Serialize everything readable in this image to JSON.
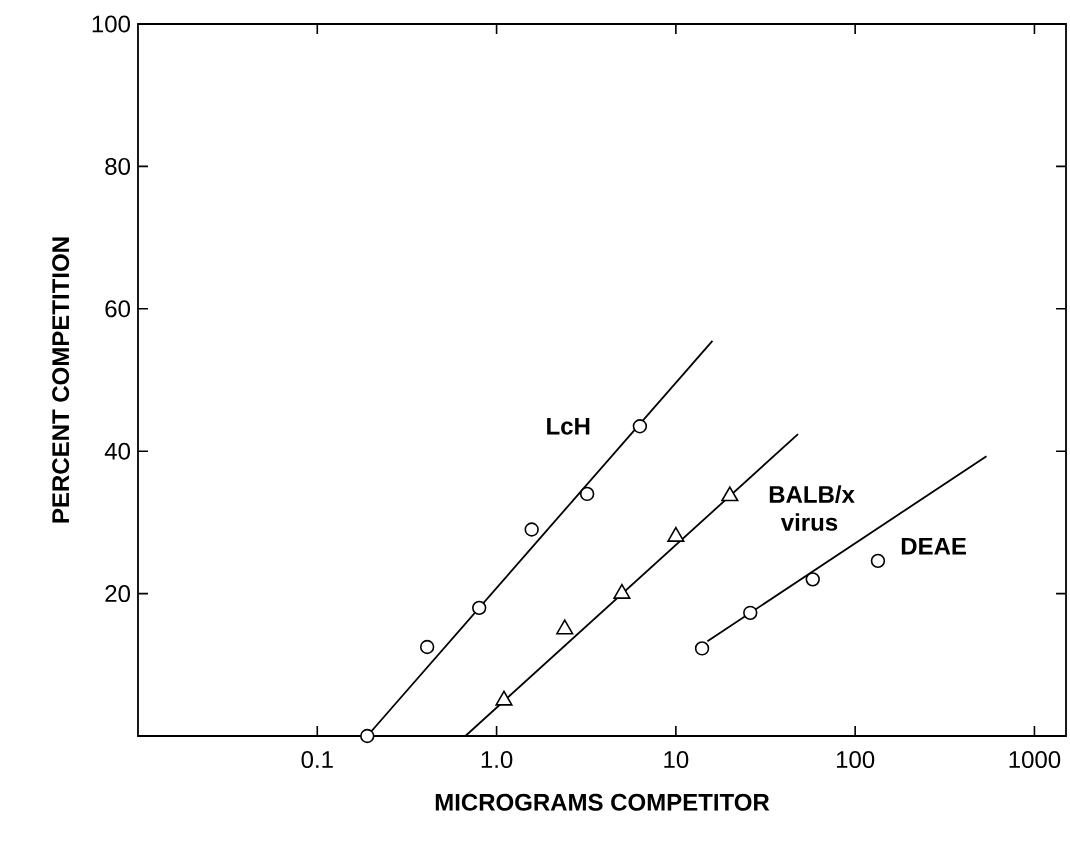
{
  "chart_data": {
    "type": "scatter",
    "xlabel": "MICROGRAMS COMPETITOR",
    "ylabel": "PERCENT COMPETITION",
    "log": "x",
    "xlim": [
      0.01,
      1500
    ],
    "ylim": [
      0,
      100
    ],
    "xticks": [
      0.1,
      {
        "value": 1,
        "label": "1.0"
      },
      10,
      100,
      1000
    ],
    "yticks": [
      20,
      40,
      60,
      80,
      100
    ],
    "series": [
      {
        "name": "LcH",
        "color": "#000000",
        "marker": "circle",
        "x": [
          0.19,
          0.41,
          0.8,
          1.57,
          3.2,
          6.3
        ],
        "values": [
          0,
          12.5,
          18,
          29,
          34,
          43.5
        ]
      },
      {
        "name": "BALB/x virus",
        "color": "#000000",
        "marker": "triangle",
        "x": [
          1.1,
          2.4,
          5,
          10,
          20
        ],
        "values": [
          5,
          15,
          20,
          28,
          33.7
        ]
      },
      {
        "name": "DEAE",
        "color": "#000000",
        "marker": "circle",
        "x": [
          14,
          26,
          58,
          134
        ],
        "values": [
          12.3,
          17.3,
          22,
          24.6
        ]
      },
      {
        "type": "line",
        "color": "#000000",
        "line_style": "solid",
        "x": [
          0.19,
          16
        ],
        "values": [
          0,
          55.5
        ]
      },
      {
        "type": "line",
        "color": "#000000",
        "line_style": "solid",
        "x": [
          0.67,
          48
        ],
        "values": [
          0,
          42.4
        ]
      },
      {
        "type": "line",
        "color": "#000000",
        "line_style": "solid",
        "x": [
          15,
          540
        ],
        "values": [
          13.3,
          39.3
        ]
      }
    ]
  }
}
